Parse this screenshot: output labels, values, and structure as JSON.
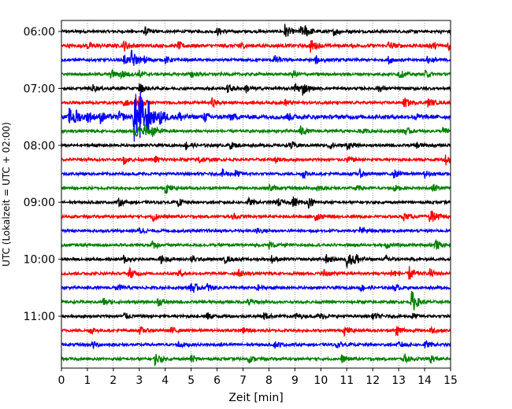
{
  "chart_data": {
    "type": "line",
    "title": "",
    "xlabel": "Zeit  [min]",
    "ylabel": "UTC (Lokalzeit = UTC + 02:00)",
    "xlim": [
      0,
      15
    ],
    "xticks": [
      0,
      1,
      2,
      3,
      4,
      5,
      6,
      7,
      8,
      9,
      10,
      11,
      12,
      13,
      14,
      15
    ],
    "grid": "vertical dotted",
    "row_interval_min": 15,
    "yticks": [
      {
        "row": 0,
        "label": "06:00"
      },
      {
        "row": 4,
        "label": "07:00"
      },
      {
        "row": 8,
        "label": "08:00"
      },
      {
        "row": 12,
        "label": "09:00"
      },
      {
        "row": 16,
        "label": "10:00"
      },
      {
        "row": 20,
        "label": "11:00"
      }
    ],
    "color_cycle": [
      "#000000",
      "#ff0000",
      "#0000ff",
      "#008000"
    ],
    "traces": [
      {
        "start": "06:00",
        "noise": 0.15,
        "spikes": [
          [
            3.2,
            0.5
          ],
          [
            6.0,
            0.4
          ],
          [
            8.6,
            0.9
          ],
          [
            9.2,
            0.6
          ],
          [
            9.4,
            0.5
          ],
          [
            10.5,
            0.4
          ],
          [
            15.0,
            0.5
          ]
        ]
      },
      {
        "start": "06:15",
        "noise": 0.18,
        "spikes": [
          [
            1.0,
            0.4
          ],
          [
            2.4,
            0.6
          ],
          [
            4.5,
            0.4
          ],
          [
            6.8,
            0.5
          ],
          [
            9.6,
            0.7
          ],
          [
            12.6,
            0.5
          ],
          [
            14.2,
            0.5
          ],
          [
            14.9,
            0.7
          ]
        ]
      },
      {
        "start": "06:30",
        "noise": 0.15,
        "spikes": [
          [
            2.4,
            0.6
          ],
          [
            2.7,
            1.1
          ],
          [
            3.2,
            0.4
          ],
          [
            4.0,
            0.4
          ],
          [
            8.2,
            0.5
          ],
          [
            9.8,
            0.5
          ],
          [
            12.6,
            0.4
          ],
          [
            14.1,
            0.4
          ]
        ]
      },
      {
        "start": "06:45",
        "noise": 0.15,
        "spikes": [
          [
            1.9,
            0.5
          ],
          [
            2.3,
            0.5
          ],
          [
            3.0,
            0.4
          ],
          [
            5.0,
            0.4
          ],
          [
            8.9,
            0.4
          ],
          [
            13.0,
            0.5
          ],
          [
            14.0,
            0.4
          ]
        ]
      },
      {
        "start": "07:00",
        "noise": 0.15,
        "spikes": [
          [
            1.2,
            0.4
          ],
          [
            3.0,
            0.6
          ],
          [
            6.4,
            0.5
          ],
          [
            7.1,
            0.5
          ],
          [
            9.0,
            0.7
          ],
          [
            9.3,
            0.6
          ],
          [
            12.2,
            0.4
          ]
        ]
      },
      {
        "start": "07:15",
        "noise": 0.15,
        "spikes": [
          [
            2.4,
            0.4
          ],
          [
            2.8,
            0.6
          ],
          [
            3.0,
            0.7
          ],
          [
            5.8,
            0.5
          ],
          [
            8.6,
            0.4
          ],
          [
            13.2,
            0.6
          ],
          [
            14.1,
            0.5
          ]
        ]
      },
      {
        "start": "07:30",
        "noise": 0.22,
        "spikes": [
          [
            0.3,
            0.9
          ],
          [
            0.5,
            0.8
          ],
          [
            1.0,
            0.7
          ],
          [
            1.5,
            0.6
          ],
          [
            2.2,
            0.6
          ],
          [
            2.8,
            3.6
          ],
          [
            3.0,
            2.6
          ],
          [
            3.3,
            1.6
          ],
          [
            3.8,
            1.0
          ],
          [
            4.5,
            0.6
          ],
          [
            5.5,
            0.5
          ],
          [
            6.5,
            0.4
          ],
          [
            8.7,
            0.4
          ],
          [
            13.6,
            0.4
          ]
        ]
      },
      {
        "start": "07:45",
        "noise": 0.15,
        "spikes": [
          [
            2.8,
            0.9
          ],
          [
            3.2,
            0.8
          ],
          [
            3.5,
            0.5
          ],
          [
            9.2,
            0.6
          ],
          [
            11.5,
            0.4
          ],
          [
            13.2,
            0.5
          ],
          [
            14.7,
            0.4
          ]
        ]
      },
      {
        "start": "08:00",
        "noise": 0.15,
        "spikes": [
          [
            4.8,
            0.5
          ],
          [
            6.5,
            0.4
          ],
          [
            8.8,
            0.6
          ],
          [
            10.3,
            0.5
          ],
          [
            11.0,
            0.4
          ],
          [
            13.7,
            0.4
          ]
        ]
      },
      {
        "start": "08:15",
        "noise": 0.15,
        "spikes": [
          [
            2.4,
            0.5
          ],
          [
            3.6,
            0.4
          ],
          [
            5.3,
            0.5
          ],
          [
            8.2,
            0.4
          ],
          [
            11.0,
            0.4
          ],
          [
            14.8,
            0.6
          ]
        ]
      },
      {
        "start": "08:30",
        "noise": 0.15,
        "spikes": [
          [
            6.2,
            0.5
          ],
          [
            6.7,
            0.4
          ],
          [
            9.3,
            0.5
          ],
          [
            11.5,
            0.4
          ],
          [
            12.8,
            0.5
          ],
          [
            14.0,
            0.4
          ]
        ]
      },
      {
        "start": "08:45",
        "noise": 0.15,
        "spikes": [
          [
            4.0,
            0.6
          ],
          [
            8.0,
            0.4
          ],
          [
            9.8,
            0.4
          ],
          [
            11.3,
            0.4
          ],
          [
            12.8,
            0.4
          ],
          [
            14.3,
            0.5
          ]
        ]
      },
      {
        "start": "09:00",
        "noise": 0.15,
        "spikes": [
          [
            2.2,
            0.4
          ],
          [
            4.5,
            0.4
          ],
          [
            7.2,
            0.4
          ],
          [
            8.3,
            0.5
          ],
          [
            8.9,
            0.7
          ],
          [
            9.5,
            0.6
          ]
        ]
      },
      {
        "start": "09:15",
        "noise": 0.15,
        "spikes": [
          [
            3.5,
            0.5
          ],
          [
            6.6,
            0.4
          ],
          [
            9.8,
            0.5
          ],
          [
            13.2,
            0.4
          ],
          [
            14.2,
            0.9
          ]
        ]
      },
      {
        "start": "09:30",
        "noise": 0.15,
        "spikes": [
          [
            3.0,
            0.4
          ],
          [
            7.5,
            0.4
          ],
          [
            11.5,
            0.4
          ]
        ]
      },
      {
        "start": "09:45",
        "noise": 0.15,
        "spikes": [
          [
            3.5,
            0.4
          ],
          [
            8.0,
            0.4
          ],
          [
            12.5,
            0.4
          ],
          [
            14.4,
            0.6
          ]
        ]
      },
      {
        "start": "10:00",
        "noise": 0.15,
        "spikes": [
          [
            2.4,
            0.5
          ],
          [
            3.8,
            0.5
          ],
          [
            5.0,
            0.4
          ],
          [
            6.3,
            0.4
          ],
          [
            8.1,
            0.4
          ],
          [
            10.2,
            0.5
          ],
          [
            11.0,
            1.1
          ],
          [
            11.3,
            0.7
          ],
          [
            12.5,
            0.4
          ]
        ]
      },
      {
        "start": "10:15",
        "noise": 0.15,
        "spikes": [
          [
            2.6,
            0.7
          ],
          [
            4.5,
            0.4
          ],
          [
            6.8,
            0.4
          ],
          [
            10.1,
            0.5
          ],
          [
            12.7,
            0.5
          ],
          [
            13.4,
            0.8
          ],
          [
            14.2,
            0.5
          ]
        ]
      },
      {
        "start": "10:30",
        "noise": 0.15,
        "spikes": [
          [
            2.1,
            0.4
          ],
          [
            5.0,
            0.8
          ],
          [
            5.6,
            0.5
          ],
          [
            7.5,
            0.4
          ],
          [
            11.5,
            0.4
          ],
          [
            12.8,
            0.4
          ]
        ]
      },
      {
        "start": "10:45",
        "noise": 0.15,
        "spikes": [
          [
            1.6,
            0.4
          ],
          [
            3.7,
            0.5
          ],
          [
            7.2,
            0.4
          ],
          [
            13.5,
            1.4
          ]
        ]
      },
      {
        "start": "11:00",
        "noise": 0.15,
        "spikes": [
          [
            2.4,
            0.4
          ],
          [
            5.6,
            0.4
          ],
          [
            7.8,
            0.4
          ],
          [
            9.0,
            0.4
          ],
          [
            9.9,
            0.5
          ],
          [
            12.0,
            0.4
          ],
          [
            13.5,
            0.4
          ]
        ]
      },
      {
        "start": "11:15",
        "noise": 0.15,
        "spikes": [
          [
            1.1,
            0.4
          ],
          [
            3.0,
            0.4
          ],
          [
            4.2,
            0.4
          ],
          [
            7.0,
            0.4
          ],
          [
            10.9,
            0.5
          ],
          [
            12.9,
            0.7
          ],
          [
            14.2,
            0.4
          ]
        ]
      },
      {
        "start": "11:30",
        "noise": 0.15,
        "spikes": [
          [
            1.2,
            0.4
          ],
          [
            4.5,
            0.4
          ],
          [
            8.2,
            0.4
          ],
          [
            10.6,
            0.4
          ],
          [
            13.0,
            0.4
          ],
          [
            14.0,
            0.4
          ]
        ]
      },
      {
        "start": "11:45",
        "noise": 0.15,
        "spikes": [
          [
            3.6,
            0.7
          ],
          [
            5.0,
            0.4
          ],
          [
            7.2,
            0.4
          ],
          [
            10.8,
            0.4
          ],
          [
            13.2,
            0.6
          ],
          [
            14.2,
            0.5
          ]
        ]
      }
    ]
  }
}
